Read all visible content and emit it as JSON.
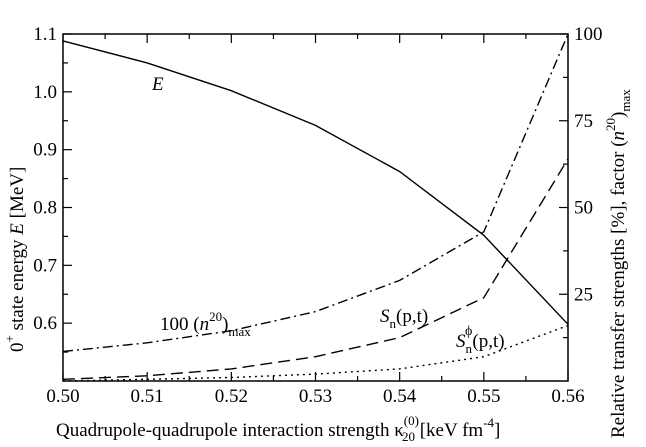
{
  "chart_data": {
    "type": "line",
    "title": "",
    "xlabel": {
      "main": "Quadrupole-quadrupole interaction strength κ",
      "kappa_sub": "20",
      "kappa_sup": "(0)",
      "unit_prefix": " [keV fm",
      "unit_sup": "-4",
      "unit_suffix": "]"
    },
    "ylabel_left": {
      "prefix": "0",
      "sup": "+",
      "middle": " state energy ",
      "italic": "E",
      "suffix": " [MeV]"
    },
    "ylabel_right": {
      "prefix": "Relative transfer strengths [%], factor (",
      "italic": "n",
      "sup": "20",
      "close": ")",
      "sub": "max"
    },
    "x": [
      0.5,
      0.51,
      0.52,
      0.53,
      0.54,
      0.55,
      0.56
    ],
    "xlim": [
      0.5,
      0.56
    ],
    "ylim_left": [
      0.5,
      1.1
    ],
    "ylim_right": [
      0,
      100
    ],
    "xticks": [
      "0.50",
      "0.51",
      "0.52",
      "0.53",
      "0.54",
      "0.55",
      "0.56"
    ],
    "yticks_left": [
      "0.6",
      "0.7",
      "0.8",
      "0.9",
      "1.0",
      "1.1"
    ],
    "yticks_right": [
      "25",
      "50",
      "75",
      "100"
    ],
    "series": [
      {
        "axis": "left",
        "style": "solid",
        "values": [
          1.088,
          1.05,
          1.002,
          0.942,
          0.862,
          0.752,
          0.598
        ],
        "label": "E"
      },
      {
        "axis": "right",
        "style": "dash-dot",
        "values": [
          8.5,
          11.0,
          14.5,
          20.0,
          29.0,
          43.0,
          100.0
        ],
        "label": {
          "prefix": "100 (",
          "italic": "n",
          "sup": "20",
          "close": ")",
          "sub": "max"
        }
      },
      {
        "axis": "right",
        "style": "dashed",
        "values": [
          0.5,
          1.5,
          3.5,
          7.0,
          12.5,
          24.0,
          64.0
        ],
        "label": {
          "italic": "S",
          "sub": "n",
          "rest": "(p,t)"
        }
      },
      {
        "axis": "right",
        "style": "dotted",
        "values": [
          0.0,
          0.5,
          1.0,
          2.0,
          3.5,
          7.0,
          16.0
        ],
        "label": {
          "italic": "S",
          "sub": "n",
          "sup": "ϕ",
          "rest": "(p,t)"
        }
      }
    ],
    "grid": false,
    "legend": "none (inline curve labels)"
  }
}
